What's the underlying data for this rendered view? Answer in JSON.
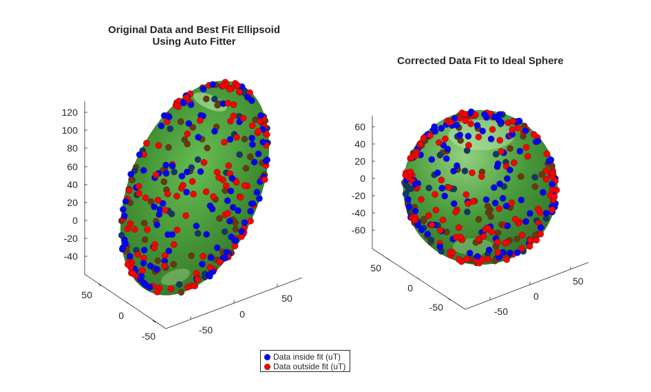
{
  "chart_data": [
    {
      "type": "scatter3d",
      "title_lines": [
        "Original Data and Best Fit Ellipsoid",
        "Using Auto Fitter"
      ],
      "z_ticks": [
        "120",
        "100",
        "80",
        "60",
        "40",
        "20",
        "0",
        "-20",
        "-40"
      ],
      "y_ticks": [
        "50",
        "0",
        "-50"
      ],
      "x_ticks": [
        "-50",
        "0",
        "50"
      ],
      "surface": {
        "shape": "ellipsoid",
        "color": "#3a9a2a"
      },
      "series": [
        {
          "name": "Data inside fit (uT)",
          "color": "#0000ff"
        },
        {
          "name": "Data outside fit (uT)",
          "color": "#ff0000"
        }
      ]
    },
    {
      "type": "scatter3d",
      "title_lines": [
        "Corrected Data Fit to Ideal Sphere"
      ],
      "z_ticks": [
        "60",
        "40",
        "20",
        "0",
        "-20",
        "-40",
        "-60"
      ],
      "y_ticks": [
        "50",
        "0",
        "-50"
      ],
      "x_ticks": [
        "-50",
        "0",
        "50"
      ],
      "surface": {
        "shape": "sphere",
        "color": "#3a9a2a"
      },
      "series": [
        {
          "name": "Data inside fit (uT)",
          "color": "#0000ff"
        },
        {
          "name": "Data outside fit (uT)",
          "color": "#ff0000"
        }
      ]
    }
  ],
  "legend": {
    "items": [
      {
        "label": "Data inside fit (uT)",
        "color": "#0000ff"
      },
      {
        "label": "Data outside fit (uT)",
        "color": "#ff0000"
      }
    ]
  }
}
